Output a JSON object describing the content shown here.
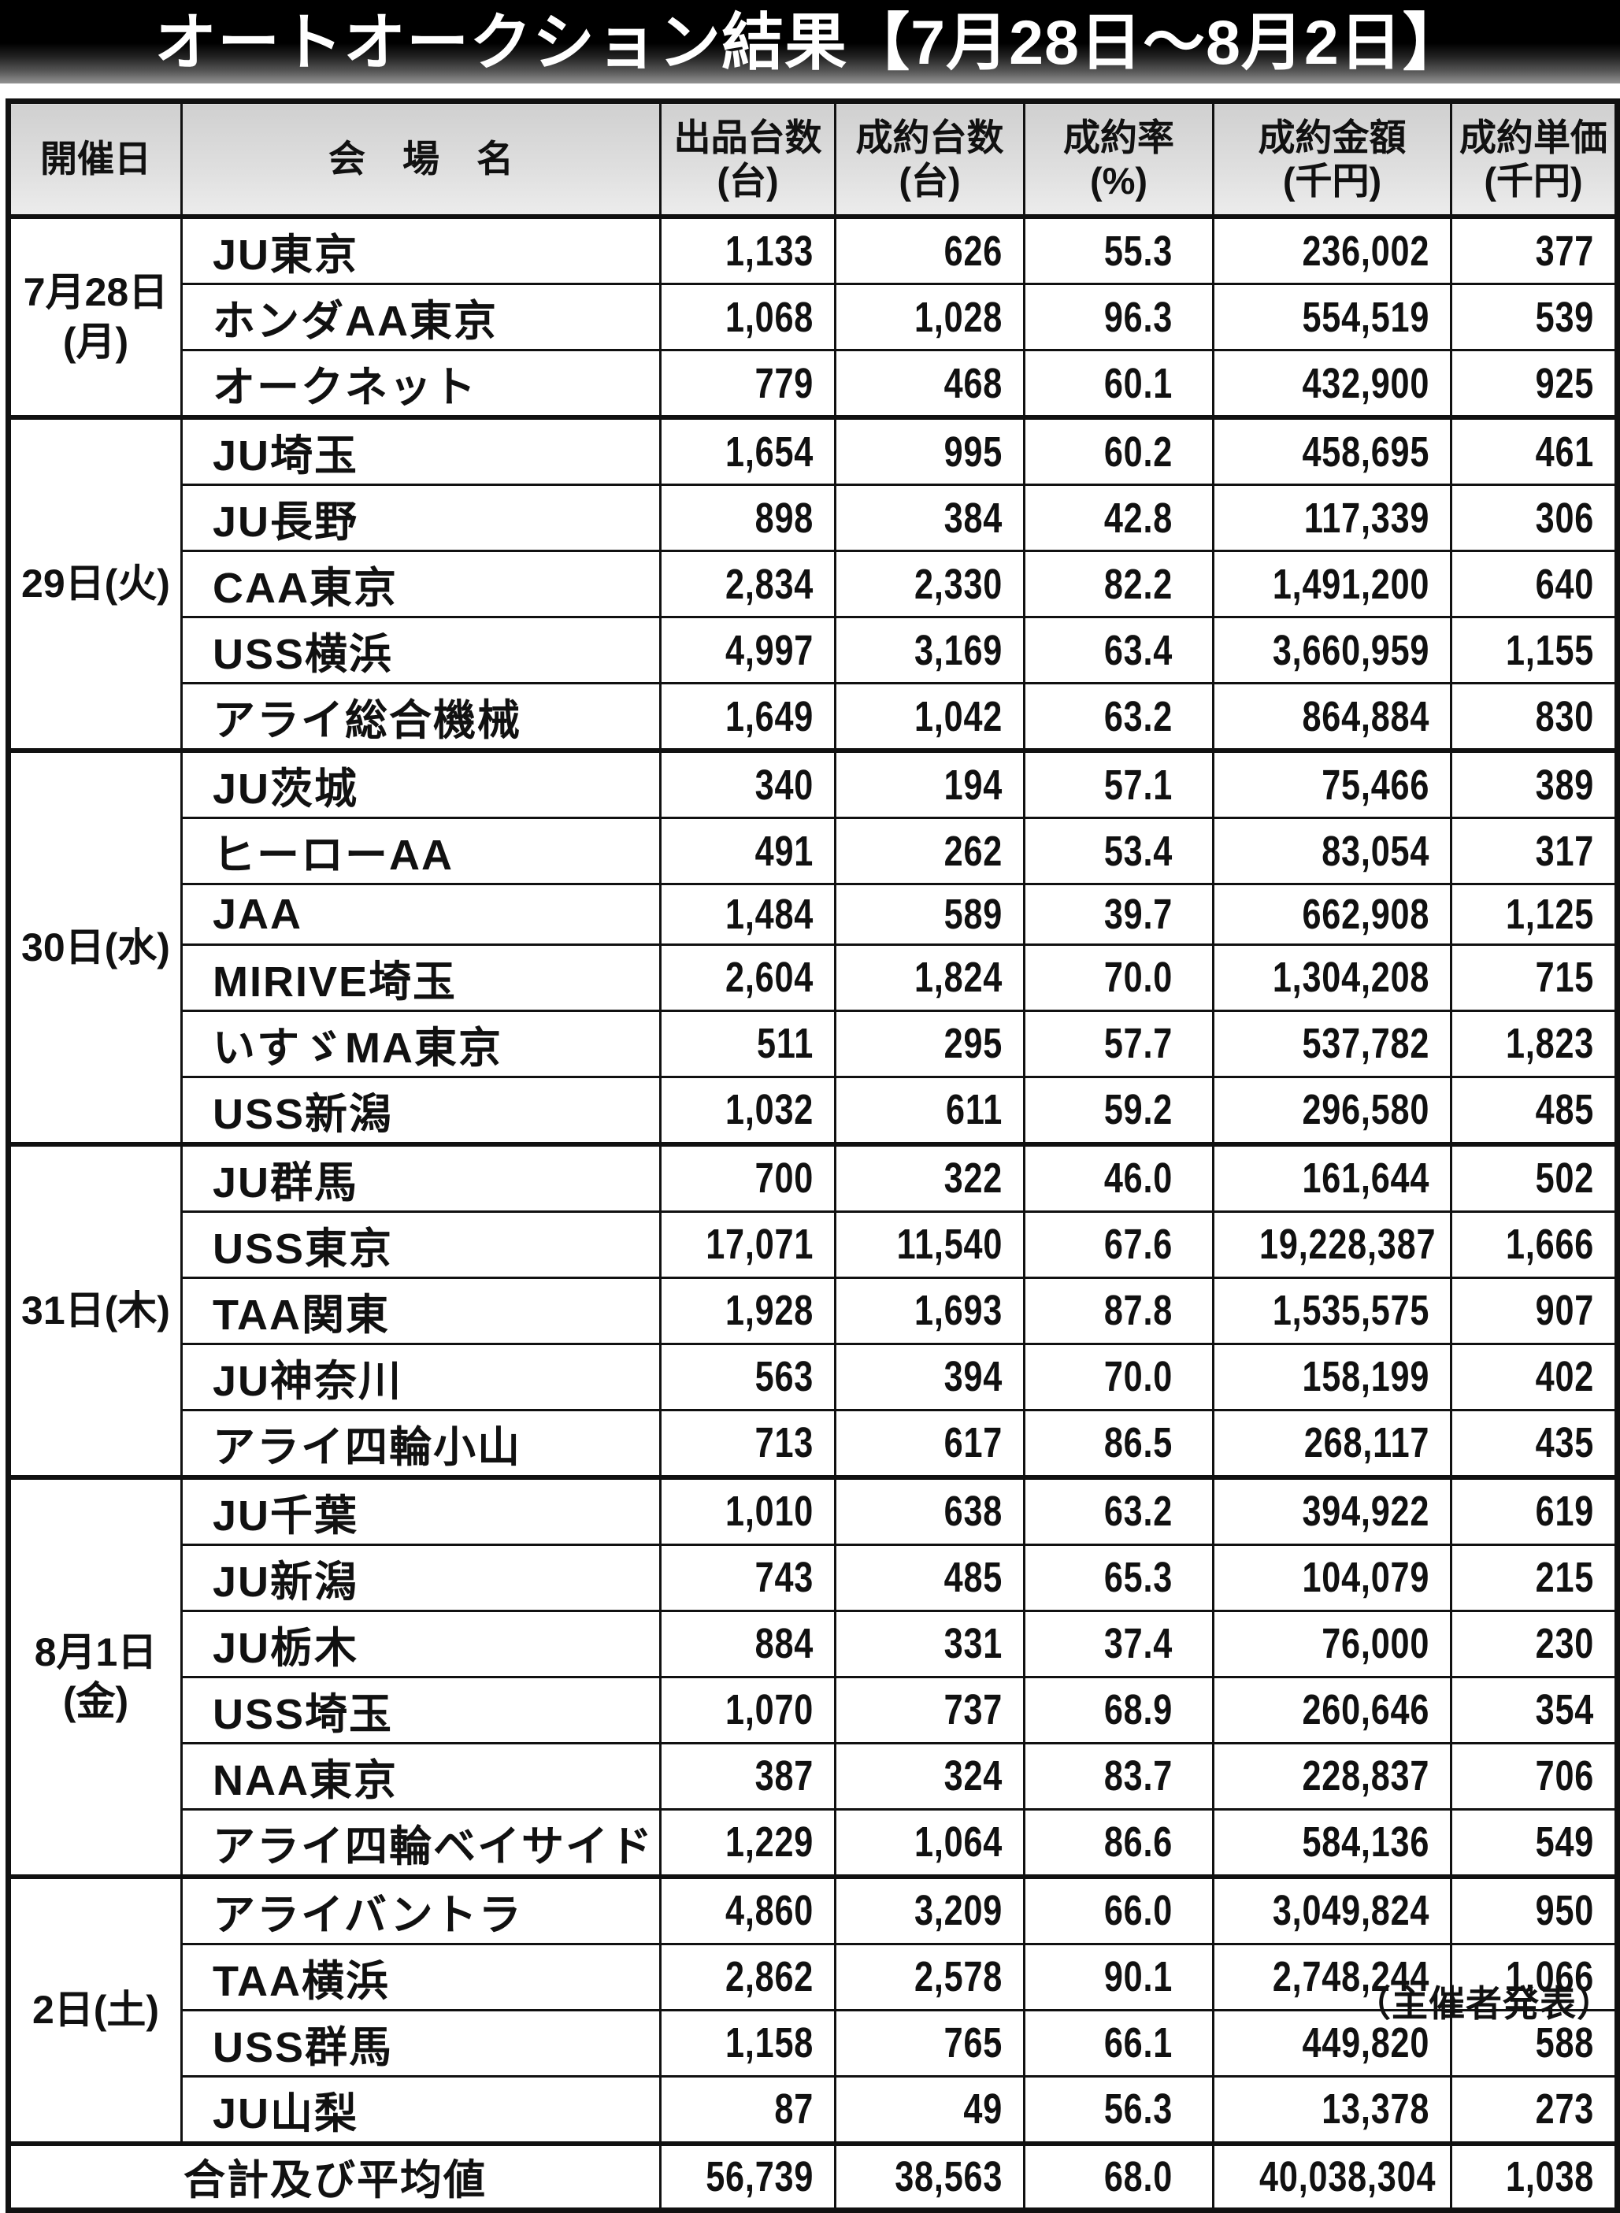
{
  "title": "オートオークション結果【7月28日～8月2日】",
  "footer_note": "（主催者発表）",
  "colors": {
    "title_bg_top": "#000000",
    "title_bg_bottom": "#929292",
    "title_text": "#ffffff",
    "header_bg": "#dcdcdc",
    "border": "#111111",
    "text": "#111111",
    "page_bg": "#ffffff"
  },
  "table": {
    "headers": {
      "date": "開催日",
      "venue": "会　場　名",
      "listed": "出品台数\n(台)",
      "sold": "成約台数\n(台)",
      "rate": "成約率\n(%)",
      "amount": "成約金額\n(千円)",
      "unit_price": "成約単価\n(千円)"
    },
    "groups": [
      {
        "date": "7月28日\n(月)",
        "rows": [
          {
            "venue": "JU東京",
            "listed": "1,133",
            "sold": "626",
            "rate": "55.3",
            "amount": "236,002",
            "unit_price": "377"
          },
          {
            "venue": "ホンダAA東京",
            "listed": "1,068",
            "sold": "1,028",
            "rate": "96.3",
            "amount": "554,519",
            "unit_price": "539"
          },
          {
            "venue": "オークネット",
            "listed": "779",
            "sold": "468",
            "rate": "60.1",
            "amount": "432,900",
            "unit_price": "925"
          }
        ]
      },
      {
        "date": "29日(火)",
        "rows": [
          {
            "venue": "JU埼玉",
            "listed": "1,654",
            "sold": "995",
            "rate": "60.2",
            "amount": "458,695",
            "unit_price": "461"
          },
          {
            "venue": "JU長野",
            "listed": "898",
            "sold": "384",
            "rate": "42.8",
            "amount": "117,339",
            "unit_price": "306"
          },
          {
            "venue": "CAA東京",
            "listed": "2,834",
            "sold": "2,330",
            "rate": "82.2",
            "amount": "1,491,200",
            "unit_price": "640"
          },
          {
            "venue": "USS横浜",
            "listed": "4,997",
            "sold": "3,169",
            "rate": "63.4",
            "amount": "3,660,959",
            "unit_price": "1,155"
          },
          {
            "venue": "アライ総合機械",
            "listed": "1,649",
            "sold": "1,042",
            "rate": "63.2",
            "amount": "864,884",
            "unit_price": "830"
          }
        ]
      },
      {
        "date": "30日(水)",
        "rows": [
          {
            "venue": "JU茨城",
            "listed": "340",
            "sold": "194",
            "rate": "57.1",
            "amount": "75,466",
            "unit_price": "389"
          },
          {
            "venue": "ヒーローAA",
            "listed": "491",
            "sold": "262",
            "rate": "53.4",
            "amount": "83,054",
            "unit_price": "317"
          },
          {
            "venue": "JAA",
            "listed": "1,484",
            "sold": "589",
            "rate": "39.7",
            "amount": "662,908",
            "unit_price": "1,125"
          },
          {
            "venue": "MIRIVE埼玉",
            "listed": "2,604",
            "sold": "1,824",
            "rate": "70.0",
            "amount": "1,304,208",
            "unit_price": "715"
          },
          {
            "venue": "いすゞMA東京",
            "listed": "511",
            "sold": "295",
            "rate": "57.7",
            "amount": "537,782",
            "unit_price": "1,823"
          },
          {
            "venue": "USS新潟",
            "listed": "1,032",
            "sold": "611",
            "rate": "59.2",
            "amount": "296,580",
            "unit_price": "485"
          }
        ]
      },
      {
        "date": "31日(木)",
        "rows": [
          {
            "venue": "JU群馬",
            "listed": "700",
            "sold": "322",
            "rate": "46.0",
            "amount": "161,644",
            "unit_price": "502"
          },
          {
            "venue": "USS東京",
            "listed": "17,071",
            "sold": "11,540",
            "rate": "67.6",
            "amount": "19,228,387",
            "unit_price": "1,666"
          },
          {
            "venue": "TAA関東",
            "listed": "1,928",
            "sold": "1,693",
            "rate": "87.8",
            "amount": "1,535,575",
            "unit_price": "907"
          },
          {
            "venue": "JU神奈川",
            "listed": "563",
            "sold": "394",
            "rate": "70.0",
            "amount": "158,199",
            "unit_price": "402"
          },
          {
            "venue": "アライ四輪小山",
            "listed": "713",
            "sold": "617",
            "rate": "86.5",
            "amount": "268,117",
            "unit_price": "435"
          }
        ]
      },
      {
        "date": "8月1日\n(金)",
        "rows": [
          {
            "venue": "JU千葉",
            "listed": "1,010",
            "sold": "638",
            "rate": "63.2",
            "amount": "394,922",
            "unit_price": "619"
          },
          {
            "venue": "JU新潟",
            "listed": "743",
            "sold": "485",
            "rate": "65.3",
            "amount": "104,079",
            "unit_price": "215"
          },
          {
            "venue": "JU栃木",
            "listed": "884",
            "sold": "331",
            "rate": "37.4",
            "amount": "76,000",
            "unit_price": "230"
          },
          {
            "venue": "USS埼玉",
            "listed": "1,070",
            "sold": "737",
            "rate": "68.9",
            "amount": "260,646",
            "unit_price": "354"
          },
          {
            "venue": "NAA東京",
            "listed": "387",
            "sold": "324",
            "rate": "83.7",
            "amount": "228,837",
            "unit_price": "706"
          },
          {
            "venue": "アライ四輪ベイサイド",
            "listed": "1,229",
            "sold": "1,064",
            "rate": "86.6",
            "amount": "584,136",
            "unit_price": "549"
          }
        ]
      },
      {
        "date": "2日(土)",
        "rows": [
          {
            "venue": "アライバントラ",
            "listed": "4,860",
            "sold": "3,209",
            "rate": "66.0",
            "amount": "3,049,824",
            "unit_price": "950"
          },
          {
            "venue": "TAA横浜",
            "listed": "2,862",
            "sold": "2,578",
            "rate": "90.1",
            "amount": "2,748,244",
            "unit_price": "1,066"
          },
          {
            "venue": "USS群馬",
            "listed": "1,158",
            "sold": "765",
            "rate": "66.1",
            "amount": "449,820",
            "unit_price": "588"
          },
          {
            "venue": "JU山梨",
            "listed": "87",
            "sold": "49",
            "rate": "56.3",
            "amount": "13,378",
            "unit_price": "273"
          }
        ]
      }
    ],
    "total": {
      "label": "合計及び平均値",
      "listed": "56,739",
      "sold": "38,563",
      "rate": "68.0",
      "amount": "40,038,304",
      "unit_price": "1,038"
    }
  }
}
